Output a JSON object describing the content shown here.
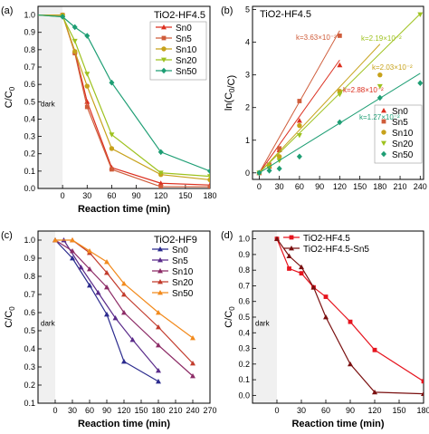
{
  "figure": {
    "panels": [
      {
        "label": "(a)",
        "title": "TiO2-HF4.5",
        "xlabel": "Reaction time (min)",
        "ylabel": "C/C0",
        "dark_label": "dark",
        "xlim": [
          -30,
          180
        ],
        "ylim": [
          0,
          1.05
        ],
        "xticks": [
          0,
          30,
          60,
          90,
          120,
          150,
          180
        ],
        "yticks": [
          0.0,
          0.1,
          0.2,
          0.3,
          0.4,
          0.5,
          0.6,
          0.7,
          0.8,
          0.9,
          1.0
        ],
        "legend_position": "top-right"
      },
      {
        "label": "(b)",
        "title": "TiO2-HF4.5",
        "xlabel": "",
        "ylabel": "ln(C0/C)",
        "xlim": [
          -10,
          245
        ],
        "ylim": [
          -0.2,
          5.1
        ],
        "xticks": [
          0,
          30,
          60,
          90,
          120,
          150,
          180,
          210,
          240
        ],
        "yticks": [
          0,
          1,
          2,
          3,
          4,
          5
        ],
        "legend_position": "bottom-right",
        "annotations": [
          "k=3.63×10⁻²",
          "k=2.88×10⁻²",
          "k=2.19×10⁻²",
          "k=2.03×10⁻²",
          "k=1.27×10⁻²"
        ]
      },
      {
        "label": "(c)",
        "title": "TiO2-HF9",
        "xlabel": "Reaction time (min)",
        "ylabel": "C/C0",
        "dark_label": "dark",
        "xlim": [
          -30,
          270
        ],
        "ylim": [
          0.1,
          1.05
        ],
        "xticks": [
          0,
          30,
          60,
          90,
          120,
          150,
          180,
          210,
          240,
          270
        ],
        "yticks": [
          0.1,
          0.2,
          0.3,
          0.4,
          0.5,
          0.6,
          0.7,
          0.8,
          0.9,
          1.0
        ],
        "legend_position": "right"
      },
      {
        "label": "(d)",
        "title": "",
        "xlabel": "Reaction time (min)",
        "ylabel": "C/C0",
        "dark_label": "dark",
        "xlim": [
          -30,
          180
        ],
        "ylim": [
          -0.05,
          1.05
        ],
        "xticks": [
          0,
          30,
          60,
          90,
          120,
          150,
          180
        ],
        "yticks": [
          0.0,
          0.1,
          0.2,
          0.3,
          0.4,
          0.5,
          0.6,
          0.7,
          0.8,
          0.9,
          1.0
        ],
        "legend_position": "top-right"
      }
    ]
  },
  "chart_data": [
    {
      "type": "line",
      "series": [
        {
          "name": "Sn0",
          "color": "#dc2f1f",
          "marker": "triangle",
          "x": [
            -30,
            0,
            15,
            30,
            60,
            120,
            180
          ],
          "y": [
            1.0,
            1.0,
            0.79,
            0.5,
            0.12,
            0.03,
            0.02
          ]
        },
        {
          "name": "Sn5",
          "color": "#cf5c3a",
          "marker": "square",
          "x": [
            -30,
            0,
            15,
            30,
            60,
            120,
            180
          ],
          "y": [
            1.0,
            1.0,
            0.78,
            0.47,
            0.11,
            0.01,
            0.01
          ]
        },
        {
          "name": "Sn10",
          "color": "#c7a21b",
          "marker": "circle",
          "x": [
            -30,
            0,
            15,
            30,
            60,
            120,
            180
          ],
          "y": [
            1.0,
            1.0,
            0.79,
            0.59,
            0.23,
            0.08,
            0.05
          ]
        },
        {
          "name": "Sn20",
          "color": "#9ec21f",
          "marker": "triangle-down",
          "x": [
            -30,
            0,
            15,
            30,
            60,
            120,
            180
          ],
          "y": [
            1.0,
            0.99,
            0.85,
            0.66,
            0.31,
            0.09,
            0.07
          ]
        },
        {
          "name": "Sn50",
          "color": "#1e9e74",
          "marker": "diamond",
          "x": [
            -30,
            0,
            15,
            30,
            60,
            120,
            180
          ],
          "y": [
            1.0,
            0.99,
            0.93,
            0.88,
            0.61,
            0.21,
            0.1
          ]
        }
      ]
    },
    {
      "type": "scatter",
      "series": [
        {
          "name": "Sn0",
          "color": "#dc2f1f",
          "marker": "triangle",
          "x": [
            0,
            15,
            30,
            60,
            120
          ],
          "y": [
            0,
            0.2,
            0.7,
            1.6,
            3.3
          ],
          "fit": [
            0,
            120,
            0.0288
          ]
        },
        {
          "name": "Sn5",
          "color": "#cf5c3a",
          "marker": "square",
          "x": [
            0,
            15,
            30,
            60,
            120
          ],
          "y": [
            0,
            0.25,
            0.75,
            2.2,
            4.2
          ],
          "fit": [
            0,
            120,
            0.0363
          ]
        },
        {
          "name": "Sn10",
          "color": "#c7a21b",
          "marker": "circle",
          "x": [
            0,
            15,
            30,
            60,
            120,
            180
          ],
          "y": [
            0,
            0.22,
            0.5,
            1.45,
            2.5,
            3.0
          ],
          "fit": [
            0,
            180,
            0.0219
          ]
        },
        {
          "name": "Sn20",
          "color": "#9ec21f",
          "marker": "triangle-down",
          "x": [
            0,
            15,
            30,
            60,
            120,
            180,
            240
          ],
          "y": [
            0,
            0.15,
            0.38,
            1.15,
            2.4,
            2.65,
            4.85
          ],
          "fit": [
            0,
            240,
            0.0203
          ]
        },
        {
          "name": "Sn50",
          "color": "#1e9e74",
          "marker": "diamond",
          "x": [
            0,
            15,
            30,
            60,
            120,
            180,
            240
          ],
          "y": [
            0,
            0.07,
            0.13,
            0.5,
            1.55,
            2.3,
            2.75
          ],
          "fit": [
            0,
            240,
            0.0127
          ]
        }
      ]
    },
    {
      "type": "line",
      "series": [
        {
          "name": "Sn0",
          "color": "#2b2b8e",
          "marker": "triangle",
          "x": [
            0,
            30,
            60,
            90,
            120,
            180
          ],
          "y": [
            1.0,
            0.9,
            0.75,
            0.59,
            0.33,
            0.22
          ]
        },
        {
          "name": "Sn5",
          "color": "#5a2b8a",
          "marker": "triangle",
          "x": [
            15,
            45,
            75,
            105,
            135,
            180
          ],
          "y": [
            1.0,
            0.85,
            0.71,
            0.57,
            0.45,
            0.28
          ]
        },
        {
          "name": "Sn10",
          "color": "#8c2b66",
          "marker": "triangle",
          "x": [
            0,
            30,
            60,
            90,
            120,
            180,
            240
          ],
          "y": [
            1.0,
            0.94,
            0.84,
            0.74,
            0.6,
            0.42,
            0.25
          ]
        },
        {
          "name": "Sn20",
          "color": "#c23b2c",
          "marker": "triangle",
          "x": [
            30,
            60,
            90,
            120,
            180,
            240
          ],
          "y": [
            1.0,
            0.93,
            0.82,
            0.7,
            0.52,
            0.32
          ]
        },
        {
          "name": "Sn50",
          "color": "#f28a1c",
          "marker": "triangle",
          "x": [
            0,
            30,
            60,
            90,
            120,
            180,
            240
          ],
          "y": [
            1.0,
            1.0,
            0.94,
            0.88,
            0.76,
            0.6,
            0.46
          ]
        }
      ]
    },
    {
      "type": "line",
      "series": [
        {
          "name": "TiO2-HF4.5",
          "color": "#e6141e",
          "marker": "square",
          "x": [
            0,
            15,
            30,
            45,
            60,
            90,
            120,
            180
          ],
          "y": [
            1.0,
            0.81,
            0.78,
            0.69,
            0.63,
            0.47,
            0.29,
            0.09
          ]
        },
        {
          "name": "TiO2-HF4.5-Sn5",
          "color": "#7a1010",
          "marker": "triangle",
          "x": [
            0,
            15,
            30,
            45,
            60,
            90,
            120,
            180
          ],
          "y": [
            1.0,
            0.89,
            0.82,
            0.69,
            0.5,
            0.2,
            0.02,
            0.01
          ]
        }
      ]
    }
  ]
}
